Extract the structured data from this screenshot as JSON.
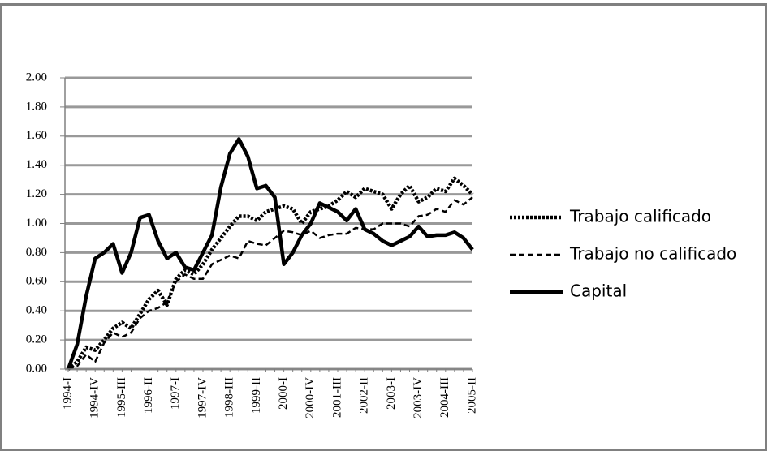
{
  "chart_data": {
    "type": "line",
    "categories": [
      "1994-I",
      null,
      null,
      "1994-IV",
      null,
      null,
      "1995-III",
      null,
      null,
      "1996-II",
      null,
      null,
      "1997-I",
      null,
      null,
      "1997-IV",
      null,
      null,
      "1998-III",
      null,
      null,
      "1999-II",
      null,
      null,
      "2000-I",
      null,
      null,
      "2000-IV",
      null,
      null,
      "2001-III",
      null,
      null,
      "2002-II",
      null,
      null,
      "2003-I",
      null,
      null,
      "2003-IV",
      null,
      null,
      "2004-III",
      null,
      null,
      "2005-II"
    ],
    "series": [
      {
        "name": "Trabajo calificado",
        "color": "#000000",
        "dash": "dotted",
        "values": [
          0,
          0.05,
          0.15,
          0.13,
          0.2,
          0.28,
          0.32,
          0.28,
          0.38,
          0.48,
          0.54,
          0.44,
          0.62,
          0.68,
          0.65,
          0.72,
          0.82,
          0.9,
          0.98,
          1.05,
          1.05,
          1.02,
          1.08,
          1.1,
          1.12,
          1.1,
          1.0,
          1.08,
          1.1,
          1.12,
          1.16,
          1.22,
          1.18,
          1.24,
          1.22,
          1.2,
          1.1,
          1.2,
          1.26,
          1.15,
          1.18,
          1.24,
          1.22,
          1.31,
          1.26,
          1.2
        ]
      },
      {
        "name": "Trabajo no calificado",
        "color": "#000000",
        "dash": "dashed",
        "values": [
          0,
          0.02,
          0.1,
          0.05,
          0.18,
          0.25,
          0.22,
          0.25,
          0.35,
          0.4,
          0.42,
          0.46,
          0.6,
          0.65,
          0.62,
          0.62,
          0.72,
          0.75,
          0.78,
          0.76,
          0.88,
          0.86,
          0.85,
          0.9,
          0.95,
          0.94,
          0.92,
          0.95,
          0.9,
          0.92,
          0.93,
          0.93,
          0.97,
          0.96,
          0.96,
          1.0,
          1.0,
          1.0,
          0.98,
          1.05,
          1.06,
          1.1,
          1.08,
          1.16,
          1.13,
          1.18
        ]
      },
      {
        "name": "Capital",
        "color": "#000000",
        "dash": "solid",
        "values": [
          0,
          0.17,
          0.5,
          0.76,
          0.8,
          0.86,
          0.66,
          0.8,
          1.04,
          1.06,
          0.88,
          0.76,
          0.8,
          0.7,
          0.68,
          0.8,
          0.92,
          1.25,
          1.48,
          1.58,
          1.46,
          1.24,
          1.26,
          1.18,
          0.72,
          0.8,
          0.92,
          1.0,
          1.14,
          1.11,
          1.08,
          1.02,
          1.1,
          0.96,
          0.93,
          0.88,
          0.85,
          0.88,
          0.91,
          0.98,
          0.91,
          0.92,
          0.92,
          0.94,
          0.9,
          0.82
        ]
      }
    ],
    "ylim": [
      0,
      2
    ],
    "yticks": [
      {
        "value": 0,
        "label": "0.00"
      },
      {
        "value": 0.2,
        "label": "0.20"
      },
      {
        "value": 0.4,
        "label": "0.40"
      },
      {
        "value": 0.6,
        "label": "0.60"
      },
      {
        "value": 0.8,
        "label": "0.80"
      },
      {
        "value": 1,
        "label": "1.00"
      },
      {
        "value": 1.2,
        "label": "1.20"
      },
      {
        "value": 1.4,
        "label": "1.40"
      },
      {
        "value": 1.6,
        "label": "1.60"
      },
      {
        "value": 1.8,
        "label": "1.80"
      },
      {
        "value": 2,
        "label": "2.00"
      }
    ],
    "grid": true,
    "legend": "right"
  }
}
